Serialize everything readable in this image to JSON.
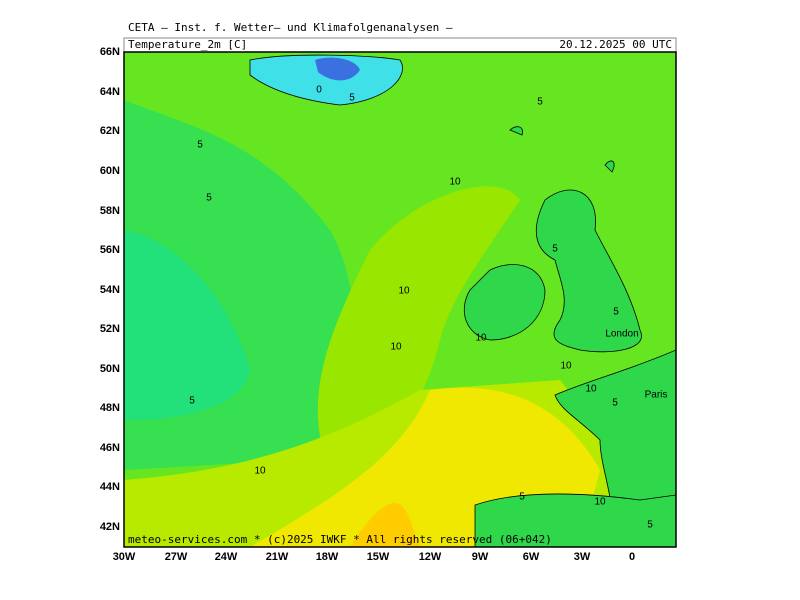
{
  "header": {
    "institute": "CETA — Inst. f. Wetter— und Klimafolgenanalysen —",
    "variable": "Temperature_2m [C]",
    "valid_time": "20.12.2025 00 UTC"
  },
  "map": {
    "lat_labels": [
      "66N",
      "64N",
      "62N",
      "60N",
      "58N",
      "56N",
      "54N",
      "52N",
      "50N",
      "48N",
      "46N",
      "44N",
      "42N"
    ],
    "lon_labels": [
      "30W",
      "27W",
      "24W",
      "21W",
      "18W",
      "15W",
      "12W",
      "9W",
      "6W",
      "3W",
      "0"
    ],
    "place_labels": [
      "London",
      "Paris"
    ],
    "contour_labels": [
      "0",
      "5",
      "5",
      "5",
      "5",
      "10",
      "10",
      "10",
      "10",
      "10",
      "10",
      "5",
      "5",
      "5",
      "10",
      "5",
      "10",
      "5",
      "5"
    ],
    "footer": "meteo-services.com * (c)2025 IWKF * All rights reserved (06+042)"
  }
}
